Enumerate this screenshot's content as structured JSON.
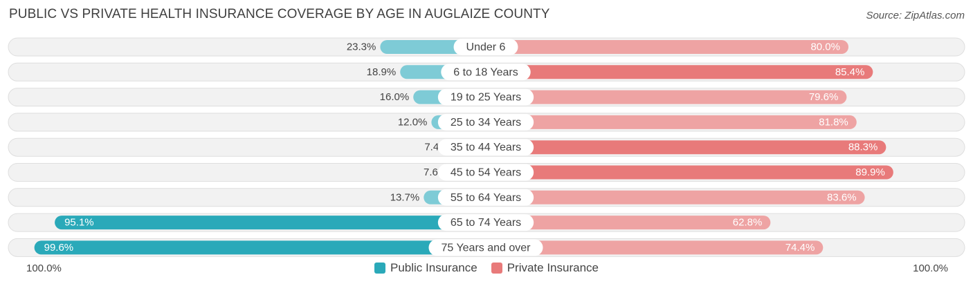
{
  "title": "PUBLIC VS PRIVATE HEALTH INSURANCE COVERAGE BY AGE IN AUGLAIZE COUNTY",
  "source": "Source: ZipAtlas.com",
  "axis": {
    "left_label": "100.0%",
    "right_label": "100.0%"
  },
  "legend": {
    "public_label": "Public Insurance",
    "private_label": "Private Insurance"
  },
  "colors": {
    "public_light": "#7ecbd6",
    "public_dark": "#2aa9b9",
    "private_light": "#eea3a3",
    "private_dark": "#e87a7a",
    "row_bg": "#f2f2f2",
    "row_border": "#dedede"
  },
  "chart_data": {
    "type": "bar",
    "orientation": "horizontal-diverging",
    "title": "PUBLIC VS PRIVATE HEALTH INSURANCE COVERAGE BY AGE IN AUGLAIZE COUNTY",
    "xlim": [
      -100,
      100
    ],
    "categories": [
      "Under 6",
      "6 to 18 Years",
      "19 to 25 Years",
      "25 to 34 Years",
      "35 to 44 Years",
      "45 to 54 Years",
      "55 to 64 Years",
      "65 to 74 Years",
      "75 Years and over"
    ],
    "series": [
      {
        "name": "Public Insurance",
        "values": [
          23.3,
          18.9,
          16.0,
          12.0,
          7.4,
          7.6,
          13.7,
          95.1,
          99.6
        ],
        "labels": [
          "23.3%",
          "18.9%",
          "16.0%",
          "12.0%",
          "7.4%",
          "7.6%",
          "13.7%",
          "95.1%",
          "99.6%"
        ]
      },
      {
        "name": "Private Insurance",
        "values": [
          80.0,
          85.4,
          79.6,
          81.8,
          88.3,
          89.9,
          83.6,
          62.8,
          74.4
        ],
        "labels": [
          "80.0%",
          "85.4%",
          "79.6%",
          "81.8%",
          "88.3%",
          "89.9%",
          "83.6%",
          "62.8%",
          "74.4%"
        ]
      }
    ],
    "legend_position": "bottom-center"
  }
}
